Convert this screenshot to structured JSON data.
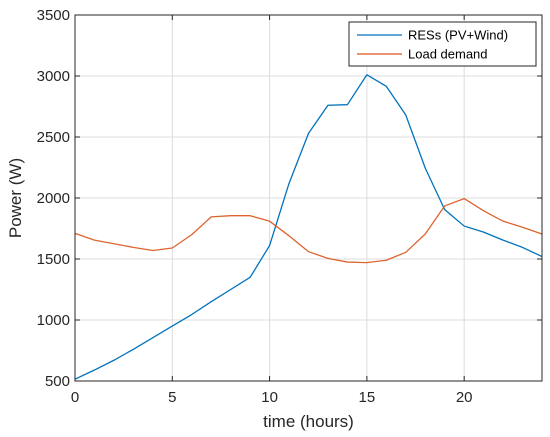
{
  "chart_data": {
    "type": "line",
    "xlabel": "time (hours)",
    "ylabel": "Power (W)",
    "xlim": [
      0,
      24
    ],
    "ylim": [
      500,
      3500
    ],
    "xticks": [
      0,
      5,
      10,
      15,
      20
    ],
    "yticks": [
      500,
      1000,
      1500,
      2000,
      2500,
      3000,
      3500
    ],
    "grid": true,
    "legend_position": "top-right",
    "series": [
      {
        "name": "RESs (PV+Wind)",
        "color": "#0072BD",
        "x": [
          0,
          1,
          2,
          3,
          4,
          5,
          6,
          7,
          8,
          9,
          10,
          11,
          12,
          13,
          14,
          15,
          16,
          17,
          18,
          19,
          20,
          21,
          22,
          23,
          24
        ],
        "values": [
          515,
          590,
          670,
          760,
          855,
          950,
          1045,
          1150,
          1250,
          1350,
          1610,
          2120,
          2530,
          2760,
          2765,
          3010,
          2915,
          2680,
          2245,
          1905,
          1770,
          1720,
          1655,
          1595,
          1520
        ]
      },
      {
        "name": "Load demand",
        "color": "#D95319",
        "x": [
          0,
          1,
          2,
          3,
          4,
          5,
          6,
          7,
          8,
          9,
          10,
          11,
          12,
          13,
          14,
          15,
          16,
          17,
          18,
          19,
          20,
          21,
          22,
          23,
          24
        ],
        "values": [
          1710,
          1655,
          1625,
          1595,
          1570,
          1590,
          1700,
          1845,
          1855,
          1855,
          1810,
          1690,
          1560,
          1505,
          1475,
          1470,
          1490,
          1555,
          1705,
          1935,
          1995,
          1895,
          1810,
          1760,
          1705
        ]
      }
    ]
  }
}
